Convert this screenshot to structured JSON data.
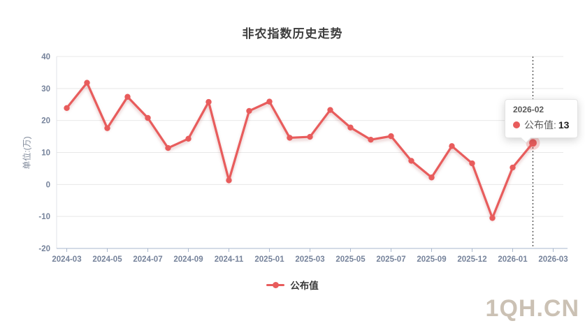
{
  "page": {
    "background": "#ffffff"
  },
  "chart_data": {
    "type": "line",
    "title": "非农指数历史走势",
    "ylabel": "单位:(万)",
    "xlabel": "",
    "ylim": [
      -20,
      40
    ],
    "y_ticks": [
      40,
      30,
      20,
      10,
      0,
      -10,
      -20
    ],
    "grid": true,
    "legend_position": "bottom",
    "n_slots": 25,
    "x_tick_labels": [
      "2024-03",
      "2024-05",
      "2024-07",
      "2024-09",
      "2024-11",
      "2025-01",
      "2025-03",
      "2025-05",
      "2025-07",
      "2025-09",
      "2025-12",
      "2026-01",
      "2026-03"
    ],
    "x_tick_indices": [
      0,
      2,
      4,
      6,
      8,
      10,
      12,
      14,
      16,
      18,
      20,
      22,
      24
    ],
    "series": [
      {
        "name": "公布值",
        "color": "#e85c5c",
        "values": [
          23.9,
          31.8,
          17.6,
          27.4,
          20.8,
          11.4,
          14.3,
          25.8,
          1.3,
          23.0,
          25.9,
          14.6,
          14.9,
          23.3,
          17.8,
          14.0,
          15.1,
          7.4,
          2.2,
          12.0,
          6.6,
          -10.5,
          5.3,
          13
        ]
      }
    ],
    "highlight": {
      "index": 23,
      "category": "2026-02",
      "value": 13
    }
  },
  "tooltip": {
    "date": "2026-02",
    "series_label": "公布值",
    "colon": ":",
    "value": "13"
  },
  "legend": {
    "label": "公布值"
  },
  "watermark": {
    "text": "1QH.CN"
  },
  "colors": {
    "accent_red": "#e85c5c",
    "halo": "rgba(232,92,92,0.28)",
    "grid": "#e8e8e8",
    "y_axis_line": "#e0e3ea",
    "x_axis_line": "#a9b7cc",
    "axis_text": "#76839b",
    "marker_line": "#222222",
    "title_text": "#3d3d3d",
    "watermark_text": "#cbc1b4"
  }
}
